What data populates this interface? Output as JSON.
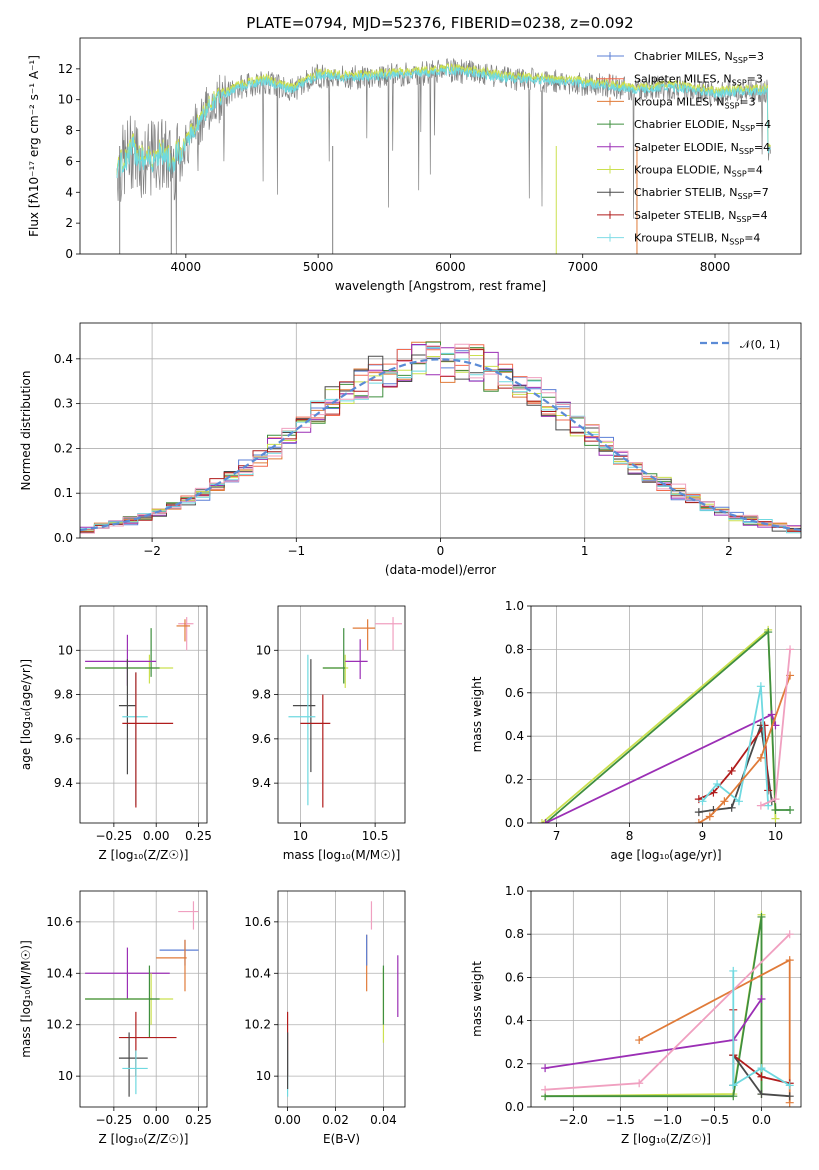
{
  "title": "PLATE=0794, MJD=52376, FIBERID=0238, z=0.092",
  "chart_data": [
    {
      "id": "spectrum",
      "type": "line",
      "xlabel": "wavelength [Angstrom, rest frame]",
      "ylabel": "Flux [fλ10⁻¹⁷ erg cm⁻² s⁻¹ A⁻¹]",
      "xlim": [
        3200,
        8650
      ],
      "ylim": [
        0,
        14
      ],
      "xticks": [
        4000,
        5000,
        6000,
        7000,
        8000
      ],
      "yticks": [
        0,
        2,
        4,
        6,
        8,
        10,
        12
      ],
      "data_color": "#808080",
      "model_color": "#6fd9e0",
      "data_x": [
        3500,
        3600,
        3700,
        3800,
        3900,
        4000,
        4100,
        4200,
        4400,
        4600,
        4800,
        5000,
        5200,
        5400,
        5600,
        5800,
        6000,
        6200,
        6400,
        6600,
        6800,
        7000,
        7200,
        7400,
        7600,
        7800,
        8000,
        8200,
        8400
      ],
      "data_y": [
        5.6,
        6.8,
        5.8,
        6.6,
        5.9,
        7.2,
        8.6,
        9.8,
        10.8,
        11.2,
        10.6,
        11.6,
        11.4,
        11.5,
        11.6,
        11.7,
        11.9,
        11.7,
        11.4,
        11.3,
        11.2,
        11.0,
        10.9,
        10.6,
        10.8,
        10.7,
        10.4,
        10.5,
        10.6
      ],
      "legend": [
        {
          "label": "Chabrier MILES, N",
          "sub": "SSP",
          "suffix": "=3",
          "color": "#5b7fd6"
        },
        {
          "label": "Salpeter MILES, N",
          "sub": "SSP",
          "suffix": "=3",
          "color": "#f26a4f"
        },
        {
          "label": "Kroupa MILES, N",
          "sub": "SSP",
          "suffix": "=3",
          "color": "#e07b39"
        },
        {
          "label": "Chabrier ELODIE, N",
          "sub": "SSP",
          "suffix": "=4",
          "color": "#3f8f3f"
        },
        {
          "label": "Salpeter ELODIE, N",
          "sub": "SSP",
          "suffix": "=4",
          "color": "#9b2fb5"
        },
        {
          "label": "Kroupa ELODIE, N",
          "sub": "SSP",
          "suffix": "=4",
          "color": "#cbe04f"
        },
        {
          "label": "Chabrier STELIB, N",
          "sub": "SSP",
          "suffix": "=7",
          "color": "#4a4a4a"
        },
        {
          "label": "Salpeter STELIB, N",
          "sub": "SSP",
          "suffix": "=4",
          "color": "#b01c1c"
        },
        {
          "label": "Kroupa STELIB, N",
          "sub": "SSP",
          "suffix": "=4",
          "color": "#7fdce6"
        }
      ]
    },
    {
      "id": "residuals",
      "type": "bar",
      "xlabel": "(data-model)/error",
      "ylabel": "Normed distribution",
      "xlim": [
        -2.5,
        2.5
      ],
      "ylim": [
        0,
        0.48
      ],
      "xticks": [
        -2,
        -1,
        0,
        1,
        2
      ],
      "yticks": [
        0.0,
        0.1,
        0.2,
        0.3,
        0.4
      ],
      "legend_label": "𝒩(0, 1)",
      "legend_color": "#5b8bd6",
      "bin_width": 0.1,
      "grid": true
    },
    {
      "id": "age-vs-Z",
      "type": "scatter",
      "xlabel": "Z [log₁₀(Z/Z☉)]",
      "ylabel": "age  [log₁₀(age/yr)]",
      "xlim": [
        -0.45,
        0.3
      ],
      "ylim": [
        9.22,
        10.2
      ],
      "xticks": [
        -0.25,
        0.0,
        0.25
      ],
      "xtick_labels": [
        "−0.25",
        "0.00",
        "0.25"
      ],
      "yticks": [
        9.4,
        9.6,
        9.8,
        10.0
      ],
      "points": [
        {
          "color": "#f0a0c0",
          "x": 0.18,
          "y": 10.12,
          "ex": [
            0.13,
            0.22
          ],
          "ey": [
            10.0,
            10.15
          ]
        },
        {
          "color": "#e07b39",
          "x": 0.17,
          "y": 10.11,
          "ex": [
            0.12,
            0.2
          ],
          "ey": [
            10.04,
            10.14
          ]
        },
        {
          "color": "#cbe04f",
          "x": -0.04,
          "y": 9.92,
          "ex": [
            -0.42,
            0.1
          ],
          "ey": [
            9.85,
            9.98
          ]
        },
        {
          "color": "#3f8f3f",
          "x": -0.03,
          "y": 9.92,
          "ex": [
            -0.42,
            0.02
          ],
          "ey": [
            9.88,
            10.1
          ]
        },
        {
          "color": "#9b2fb5",
          "x": -0.17,
          "y": 9.95,
          "ex": [
            -0.42,
            0.0
          ],
          "ey": [
            9.84,
            10.07
          ]
        },
        {
          "color": "#4a4a4a",
          "x": -0.17,
          "y": 9.75,
          "ex": [
            -0.22,
            -0.12
          ],
          "ey": [
            9.44,
            9.96
          ]
        },
        {
          "color": "#6fd9e0",
          "x": -0.12,
          "y": 9.7,
          "ex": [
            -0.2,
            -0.05
          ],
          "ey": [
            9.3,
            9.9
          ]
        },
        {
          "color": "#b01c1c",
          "x": -0.12,
          "y": 9.67,
          "ex": [
            -0.2,
            0.1
          ],
          "ey": [
            9.29,
            9.9
          ]
        }
      ]
    },
    {
      "id": "age-vs-mass",
      "type": "scatter",
      "xlabel": "mass [log₁₀(M/M☉)]",
      "ylabel": "",
      "xlim": [
        9.85,
        10.7
      ],
      "ylim": [
        9.22,
        10.2
      ],
      "xticks": [
        10.0,
        10.5
      ],
      "yticks": [
        9.4,
        9.6,
        9.8,
        10.0
      ],
      "points": [
        {
          "color": "#f0a0c0",
          "x": 10.62,
          "y": 10.12,
          "ex": [
            10.5,
            10.68
          ],
          "ey": [
            10.0,
            10.15
          ]
        },
        {
          "color": "#e07b39",
          "x": 10.45,
          "y": 10.1,
          "ex": [
            10.35,
            10.5
          ],
          "ey": [
            10.0,
            10.14
          ]
        },
        {
          "color": "#cbe04f",
          "x": 10.3,
          "y": 9.92,
          "ex": [
            10.15,
            10.32
          ],
          "ey": [
            9.83,
            9.98
          ]
        },
        {
          "color": "#3f8f3f",
          "x": 10.29,
          "y": 9.92,
          "ex": [
            10.15,
            10.3
          ],
          "ey": [
            9.85,
            10.1
          ]
        },
        {
          "color": "#9b2fb5",
          "x": 10.4,
          "y": 9.95,
          "ex": [
            10.3,
            10.45
          ],
          "ey": [
            9.87,
            10.05
          ]
        },
        {
          "color": "#4a4a4a",
          "x": 10.07,
          "y": 9.75,
          "ex": [
            9.95,
            10.1
          ],
          "ey": [
            9.45,
            9.96
          ]
        },
        {
          "color": "#6fd9e0",
          "x": 10.05,
          "y": 9.7,
          "ex": [
            9.92,
            10.1
          ],
          "ey": [
            9.3,
            9.98
          ]
        },
        {
          "color": "#b01c1c",
          "x": 10.15,
          "y": 9.67,
          "ex": [
            10.0,
            10.2
          ],
          "ey": [
            9.29,
            9.8
          ]
        }
      ]
    },
    {
      "id": "weight-vs-age",
      "type": "line",
      "xlabel": "age  [log₁₀(age/yr)]",
      "ylabel": "mass weight",
      "xlim": [
        6.65,
        10.35
      ],
      "ylim": [
        0,
        1
      ],
      "xticks": [
        7,
        8,
        9,
        10
      ],
      "yticks": [
        0.0,
        0.2,
        0.4,
        0.6,
        0.8,
        1.0
      ],
      "series": [
        {
          "color": "#cbe04f",
          "x": [
            6.8,
            9.9,
            10.0
          ],
          "y": [
            0.0,
            0.89,
            0.02
          ]
        },
        {
          "color": "#3f8f3f",
          "x": [
            6.85,
            9.9,
            10.0,
            10.2
          ],
          "y": [
            0.0,
            0.88,
            0.06,
            0.06
          ]
        },
        {
          "color": "#9b2fb5",
          "x": [
            6.85,
            9.95,
            10.0
          ],
          "y": [
            0.0,
            0.5,
            0.45
          ]
        },
        {
          "color": "#4a4a4a",
          "x": [
            8.95,
            9.15,
            9.4,
            9.8,
            9.95
          ],
          "y": [
            0.05,
            0.06,
            0.07,
            0.45,
            0.1
          ]
        },
        {
          "color": "#b01c1c",
          "x": [
            8.95,
            9.15,
            9.4,
            9.85,
            9.9
          ],
          "y": [
            0.11,
            0.14,
            0.24,
            0.45,
            0.15
          ]
        },
        {
          "color": "#6fd9e0",
          "x": [
            9.0,
            9.2,
            9.5,
            9.8,
            9.9
          ],
          "y": [
            0.1,
            0.18,
            0.1,
            0.63,
            0.08
          ]
        },
        {
          "color": "#e07b39",
          "x": [
            8.95,
            9.1,
            9.3,
            9.8,
            10.2
          ],
          "y": [
            0.0,
            0.03,
            0.1,
            0.3,
            0.68
          ]
        },
        {
          "color": "#f0a0c0",
          "x": [
            9.8,
            10.0,
            10.2
          ],
          "y": [
            0.08,
            0.11,
            0.8
          ]
        }
      ]
    },
    {
      "id": "mass-vs-Z",
      "type": "scatter",
      "xlabel": "Z [log₁₀(Z/Z☉)]",
      "ylabel": "mass [log₁₀(M/M☉)]",
      "xlim": [
        -0.45,
        0.3
      ],
      "ylim": [
        9.88,
        10.72
      ],
      "xticks": [
        -0.25,
        0.0,
        0.25
      ],
      "xtick_labels": [
        "−0.25",
        "0.00",
        "0.25"
      ],
      "yticks": [
        10.0,
        10.2,
        10.4,
        10.6
      ],
      "points": [
        {
          "color": "#f0a0c0",
          "x": 0.22,
          "y": 10.64,
          "ex": [
            0.13,
            0.25
          ],
          "ey": [
            10.57,
            10.68
          ]
        },
        {
          "color": "#5b7fd6",
          "x": 0.17,
          "y": 10.49,
          "ex": [
            0.02,
            0.25
          ],
          "ey": [
            10.43,
            10.53
          ]
        },
        {
          "color": "#e07b39",
          "x": 0.17,
          "y": 10.46,
          "ex": [
            0.0,
            0.18
          ],
          "ey": [
            10.33,
            10.53
          ]
        },
        {
          "color": "#9b2fb5",
          "x": -0.17,
          "y": 10.4,
          "ex": [
            -0.42,
            0.08
          ],
          "ey": [
            10.3,
            10.5
          ]
        },
        {
          "color": "#cbe04f",
          "x": -0.03,
          "y": 10.3,
          "ex": [
            -0.42,
            0.1
          ],
          "ey": [
            10.2,
            10.4
          ]
        },
        {
          "color": "#3f8f3f",
          "x": -0.04,
          "y": 10.3,
          "ex": [
            -0.42,
            0.02
          ],
          "ey": [
            10.15,
            10.43
          ]
        },
        {
          "color": "#b01c1c",
          "x": -0.12,
          "y": 10.15,
          "ex": [
            -0.22,
            0.12
          ],
          "ey": [
            10.0,
            10.25
          ]
        },
        {
          "color": "#4a4a4a",
          "x": -0.16,
          "y": 10.07,
          "ex": [
            -0.22,
            -0.05
          ],
          "ey": [
            9.92,
            10.17
          ]
        },
        {
          "color": "#6fd9e0",
          "x": -0.12,
          "y": 10.03,
          "ex": [
            -0.2,
            -0.05
          ],
          "ey": [
            9.93,
            10.1
          ]
        }
      ]
    },
    {
      "id": "mass-vs-EBV",
      "type": "scatter",
      "xlabel": "E(B-V)",
      "ylabel": "",
      "xlim": [
        -0.004,
        0.049
      ],
      "ylim": [
        9.88,
        10.72
      ],
      "xticks": [
        0.0,
        0.02,
        0.04
      ],
      "xtick_labels": [
        "0.00",
        "0.02",
        "0.04"
      ],
      "yticks": [
        10.0,
        10.2,
        10.4,
        10.6
      ],
      "points": [
        {
          "color": "#f0a0c0",
          "x": 0.035,
          "y": 10.62,
          "ey": [
            10.57,
            10.68
          ]
        },
        {
          "color": "#e07b39",
          "x": 0.033,
          "y": 10.47,
          "ey": [
            10.33,
            10.55
          ]
        },
        {
          "color": "#5b7fd6",
          "x": 0.033,
          "y": 10.5,
          "ey": [
            10.43,
            10.55
          ]
        },
        {
          "color": "#9b2fb5",
          "x": 0.046,
          "y": 10.35,
          "ey": [
            10.23,
            10.47
          ]
        },
        {
          "color": "#cbe04f",
          "x": 0.04,
          "y": 10.3,
          "ey": [
            10.13,
            10.42
          ]
        },
        {
          "color": "#3f8f3f",
          "x": 0.04,
          "y": 10.35,
          "ey": [
            10.2,
            10.43
          ]
        },
        {
          "color": "#b01c1c",
          "x": 0.0,
          "y": 10.15,
          "ey": [
            10.0,
            10.25
          ]
        },
        {
          "color": "#6fd9e0",
          "x": 0.0,
          "y": 10.0,
          "ey": [
            9.92,
            10.1
          ]
        },
        {
          "color": "#4a4a4a",
          "x": 0.0,
          "y": 10.07,
          "ey": [
            9.95,
            10.17
          ]
        }
      ]
    },
    {
      "id": "weight-vs-Z",
      "type": "line",
      "xlabel": "Z [log₁₀(Z/Z☉)]",
      "ylabel": "mass weight",
      "xlim": [
        -2.45,
        0.42
      ],
      "ylim": [
        0,
        1
      ],
      "xticks": [
        -2.0,
        -1.5,
        -1.0,
        -0.5,
        0.0
      ],
      "xtick_labels": [
        "−2.0",
        "−1.5",
        "−1.0",
        "−0.5",
        "0.0"
      ],
      "yticks": [
        0.0,
        0.2,
        0.4,
        0.6,
        0.8,
        1.0
      ],
      "series": [
        {
          "color": "#cbe04f",
          "x": [
            -2.3,
            -0.3,
            0.0,
            0.0
          ],
          "y": [
            0.05,
            0.06,
            0.89,
            0.06
          ]
        },
        {
          "color": "#3f8f3f",
          "x": [
            -2.3,
            -0.3,
            0.0,
            0.0
          ],
          "y": [
            0.05,
            0.05,
            0.88,
            0.06
          ]
        },
        {
          "color": "#9b2fb5",
          "x": [
            -2.3,
            -0.3,
            0.0
          ],
          "y": [
            0.18,
            0.31,
            0.5
          ]
        },
        {
          "color": "#e07b39",
          "x": [
            -1.3,
            0.3,
            0.3
          ],
          "y": [
            0.31,
            0.68,
            0.02
          ]
        },
        {
          "color": "#f0a0c0",
          "x": [
            -2.3,
            -1.3,
            0.3
          ],
          "y": [
            0.08,
            0.11,
            0.8
          ]
        },
        {
          "color": "#4a4a4a",
          "x": [
            -0.3,
            -0.3,
            0.0,
            0.3
          ],
          "y": [
            0.1,
            0.24,
            0.06,
            0.05
          ]
        },
        {
          "color": "#b01c1c",
          "x": [
            -0.3,
            -0.3,
            0.0,
            0.3
          ],
          "y": [
            0.45,
            0.24,
            0.14,
            0.11
          ]
        },
        {
          "color": "#6fd9e0",
          "x": [
            -0.3,
            -0.3,
            0.0,
            0.3
          ],
          "y": [
            0.63,
            0.1,
            0.18,
            0.1
          ]
        }
      ]
    }
  ]
}
